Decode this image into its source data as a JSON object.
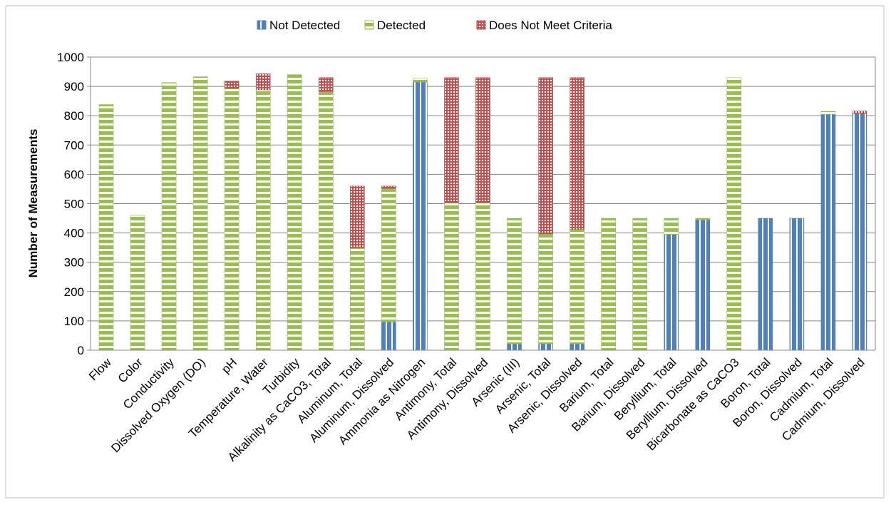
{
  "chart_data": {
    "type": "bar",
    "stacked": true,
    "title": "",
    "xlabel": "",
    "ylabel": "Number of Measurements",
    "ylim": [
      0,
      1000
    ],
    "yticks": [
      0,
      100,
      200,
      300,
      400,
      500,
      600,
      700,
      800,
      900,
      1000
    ],
    "grid": true,
    "legend_position": "top",
    "categories": [
      "Flow",
      "Color",
      "Conductivity",
      "Dissolved Oxygen (DO)",
      "pH",
      "Temperature, Water",
      "Turbidity",
      "Alkalinity as CaCO3, Total",
      "Aluminum, Total",
      "Aluminum, Dissolved",
      "Ammonia as Nitrogen",
      "Antimony, Total",
      "Antimony, Dissolved",
      "Arsenic (III)",
      "Arsenic, Total",
      "Arsenic, Dissolved",
      "Barium, Total",
      "Barium, Dissolved",
      "Beryllium, Total",
      "Beryllium, Dissolved",
      "Bicarbonate as CaCO3",
      "Boron, Total",
      "Boron, Dissolved",
      "Cadmium, Total",
      "Cadmium, Dissolved"
    ],
    "series": [
      {
        "name": "Not Detected",
        "color": "#4F81BD",
        "pattern": "vertical-stripes",
        "values": [
          0,
          0,
          0,
          0,
          0,
          0,
          0,
          0,
          0,
          97,
          915,
          0,
          0,
          22,
          22,
          22,
          0,
          0,
          395,
          445,
          0,
          450,
          450,
          805,
          808
        ]
      },
      {
        "name": "Detected",
        "color": "#9BBB59",
        "pattern": "horizontal-stripes",
        "values": [
          838,
          460,
          913,
          933,
          893,
          888,
          940,
          882,
          350,
          455,
          13,
          503,
          503,
          428,
          375,
          390,
          450,
          450,
          55,
          5,
          930,
          0,
          0,
          10,
          0
        ]
      },
      {
        "name": "Does Not Meet Criteria",
        "color": "#C0504D",
        "pattern": "dots",
        "values": [
          0,
          0,
          0,
          0,
          25,
          55,
          0,
          48,
          210,
          8,
          0,
          427,
          427,
          0,
          533,
          518,
          0,
          0,
          0,
          0,
          0,
          0,
          0,
          0,
          8
        ]
      }
    ]
  }
}
